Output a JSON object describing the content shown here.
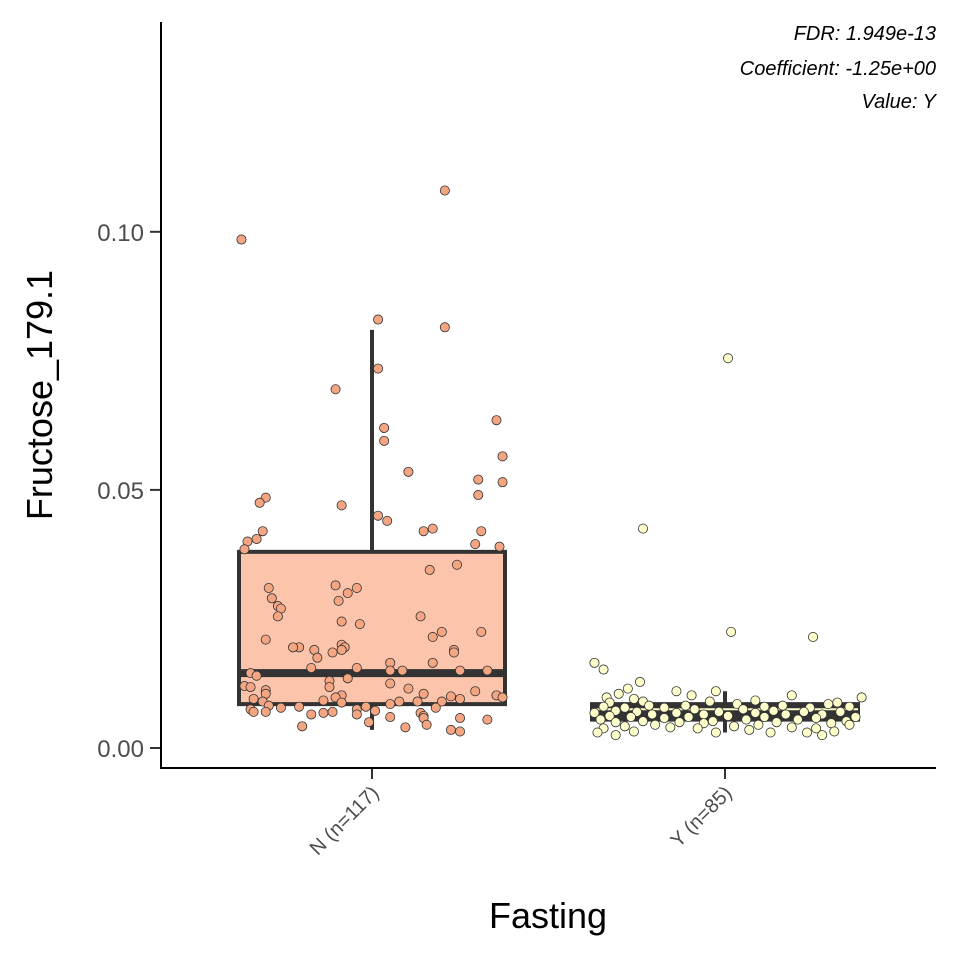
{
  "chart_data": {
    "type": "box",
    "title": "",
    "xlabel": "Fasting",
    "ylabel": "Fructose_179.1",
    "ylim": [
      -0.004,
      0.141
    ],
    "yticks": [
      {
        "value": 0.0,
        "label": "0.00"
      },
      {
        "value": 0.05,
        "label": "0.05"
      },
      {
        "value": 0.1,
        "label": "0.10"
      }
    ],
    "annotations": [
      "FDR: 1.949e-13",
      "Coefficient: -1.25e+00",
      "Value: Y"
    ],
    "grid": false,
    "legend": "none",
    "categories": [
      "N (n=117)",
      "Y (n=85)"
    ],
    "series": [
      {
        "category": "N (n=117)",
        "color": "#fcc5ab",
        "point_color": "#f4a582",
        "box": {
          "whisker_low": 0.0035,
          "q1": 0.0085,
          "median": 0.0145,
          "q3": 0.038,
          "whisker_high": 0.081
        },
        "points": [
          {
            "x": -0.43,
            "y": 0.0985
          },
          {
            "x": 0.24,
            "y": 0.108
          },
          {
            "x": 0.24,
            "y": 0.0815
          },
          {
            "x": 0.41,
            "y": 0.0635
          },
          {
            "x": 0.02,
            "y": 0.083
          },
          {
            "x": -0.12,
            "y": 0.0695
          },
          {
            "x": 0.02,
            "y": 0.0735
          },
          {
            "x": 0.43,
            "y": 0.0565
          },
          {
            "x": 0.04,
            "y": 0.062
          },
          {
            "x": 0.04,
            "y": 0.0595
          },
          {
            "x": 0.12,
            "y": 0.0535
          },
          {
            "x": 0.35,
            "y": 0.052
          },
          {
            "x": 0.43,
            "y": 0.0515
          },
          {
            "x": 0.35,
            "y": 0.049
          },
          {
            "x": -0.35,
            "y": 0.0485
          },
          {
            "x": -0.37,
            "y": 0.0475
          },
          {
            "x": -0.1,
            "y": 0.047
          },
          {
            "x": 0.02,
            "y": 0.045
          },
          {
            "x": 0.05,
            "y": 0.044
          },
          {
            "x": 0.2,
            "y": 0.0425
          },
          {
            "x": 0.17,
            "y": 0.042
          },
          {
            "x": 0.36,
            "y": 0.042
          },
          {
            "x": -0.36,
            "y": 0.042
          },
          {
            "x": -0.38,
            "y": 0.0405
          },
          {
            "x": -0.41,
            "y": 0.04
          },
          {
            "x": 0.34,
            "y": 0.0395
          },
          {
            "x": 0.42,
            "y": 0.039
          },
          {
            "x": -0.42,
            "y": 0.0385
          },
          {
            "x": 0.28,
            "y": 0.0355
          },
          {
            "x": 0.19,
            "y": 0.0345
          },
          {
            "x": -0.12,
            "y": 0.0315
          },
          {
            "x": -0.05,
            "y": 0.031
          },
          {
            "x": -0.34,
            "y": 0.031
          },
          {
            "x": -0.08,
            "y": 0.03
          },
          {
            "x": -0.33,
            "y": 0.029
          },
          {
            "x": -0.11,
            "y": 0.0285
          },
          {
            "x": -0.31,
            "y": 0.0275
          },
          {
            "x": -0.3,
            "y": 0.027
          },
          {
            "x": 0.16,
            "y": 0.0255
          },
          {
            "x": -0.31,
            "y": 0.0255
          },
          {
            "x": -0.1,
            "y": 0.0245
          },
          {
            "x": -0.04,
            "y": 0.024
          },
          {
            "x": 0.23,
            "y": 0.0225
          },
          {
            "x": 0.36,
            "y": 0.0225
          },
          {
            "x": 0.2,
            "y": 0.0215
          },
          {
            "x": -0.35,
            "y": 0.021
          },
          {
            "x": -0.1,
            "y": 0.02
          },
          {
            "x": -0.09,
            "y": 0.0195
          },
          {
            "x": -0.24,
            "y": 0.0195
          },
          {
            "x": 0.27,
            "y": 0.019
          },
          {
            "x": -0.19,
            "y": 0.019
          },
          {
            "x": -0.26,
            "y": 0.0195
          },
          {
            "x": -0.1,
            "y": 0.019
          },
          {
            "x": 0.27,
            "y": 0.0185
          },
          {
            "x": -0.13,
            "y": 0.0185
          },
          {
            "x": -0.18,
            "y": 0.0175
          },
          {
            "x": 0.06,
            "y": 0.0165
          },
          {
            "x": 0.2,
            "y": 0.0165
          },
          {
            "x": -0.05,
            "y": 0.0155
          },
          {
            "x": -0.2,
            "y": 0.0155
          },
          {
            "x": 0.06,
            "y": 0.015
          },
          {
            "x": 0.29,
            "y": 0.015
          },
          {
            "x": 0.1,
            "y": 0.015
          },
          {
            "x": 0.38,
            "y": 0.015
          },
          {
            "x": -0.4,
            "y": 0.0145
          },
          {
            "x": -0.38,
            "y": 0.014
          },
          {
            "x": -0.08,
            "y": 0.0135
          },
          {
            "x": -0.14,
            "y": 0.013
          },
          {
            "x": 0.06,
            "y": 0.0125
          },
          {
            "x": -0.42,
            "y": 0.012
          },
          {
            "x": -0.4,
            "y": 0.0118
          },
          {
            "x": -0.14,
            "y": 0.0118
          },
          {
            "x": 0.12,
            "y": 0.0115
          },
          {
            "x": -0.35,
            "y": 0.0112
          },
          {
            "x": 0.34,
            "y": 0.011
          },
          {
            "x": -0.35,
            "y": 0.0105
          },
          {
            "x": 0.17,
            "y": 0.0105
          },
          {
            "x": 0.41,
            "y": 0.0102
          },
          {
            "x": -0.1,
            "y": 0.0102
          },
          {
            "x": 0.26,
            "y": 0.01
          },
          {
            "x": -0.12,
            "y": 0.0098
          },
          {
            "x": 0.43,
            "y": 0.0098
          },
          {
            "x": -0.39,
            "y": 0.0095
          },
          {
            "x": 0.29,
            "y": 0.0095
          },
          {
            "x": -0.16,
            "y": 0.0092
          },
          {
            "x": 0.09,
            "y": 0.009
          },
          {
            "x": -0.36,
            "y": 0.009
          },
          {
            "x": 0.23,
            "y": 0.009
          },
          {
            "x": 0.15,
            "y": 0.009
          },
          {
            "x": -0.1,
            "y": 0.0088
          },
          {
            "x": 0.06,
            "y": 0.0085
          },
          {
            "x": -0.34,
            "y": 0.0082
          },
          {
            "x": -0.24,
            "y": 0.008
          },
          {
            "x": -0.02,
            "y": 0.008
          },
          {
            "x": -0.3,
            "y": 0.0078
          },
          {
            "x": 0.21,
            "y": 0.0078
          },
          {
            "x": -0.05,
            "y": 0.0075
          },
          {
            "x": -0.4,
            "y": 0.0075
          },
          {
            "x": 0.01,
            "y": 0.0072
          },
          {
            "x": -0.35,
            "y": 0.007
          },
          {
            "x": -0.13,
            "y": 0.007
          },
          {
            "x": -0.39,
            "y": 0.007
          },
          {
            "x": 0.16,
            "y": 0.0068
          },
          {
            "x": -0.16,
            "y": 0.0068
          },
          {
            "x": -0.05,
            "y": 0.0065
          },
          {
            "x": -0.2,
            "y": 0.0065
          },
          {
            "x": 0.17,
            "y": 0.0062
          },
          {
            "x": 0.06,
            "y": 0.006
          },
          {
            "x": 0.17,
            "y": 0.0058
          },
          {
            "x": 0.29,
            "y": 0.0058
          },
          {
            "x": 0.38,
            "y": 0.0055
          },
          {
            "x": -0.01,
            "y": 0.005
          },
          {
            "x": 0.18,
            "y": 0.0045
          },
          {
            "x": -0.23,
            "y": 0.0042
          },
          {
            "x": 0.11,
            "y": 0.004
          },
          {
            "x": 0.26,
            "y": 0.0035
          },
          {
            "x": 0.29,
            "y": 0.0032
          }
        ]
      },
      {
        "category": "Y (n=85)",
        "color": "#333333",
        "median_color": "#ffffcc",
        "point_color": "#ffffcc",
        "box": {
          "whisker_low": 0.003,
          "q1": 0.0055,
          "median": 0.0075,
          "q3": 0.0085,
          "whisker_high": 0.011
        },
        "points": [
          {
            "x": 0.01,
            "y": 0.0755
          },
          {
            "x": -0.27,
            "y": 0.0425
          },
          {
            "x": 0.02,
            "y": 0.0225
          },
          {
            "x": 0.29,
            "y": 0.0215
          },
          {
            "x": -0.43,
            "y": 0.0165
          },
          {
            "x": -0.4,
            "y": 0.0152
          },
          {
            "x": -0.28,
            "y": 0.0128
          },
          {
            "x": -0.32,
            "y": 0.0115
          },
          {
            "x": -0.16,
            "y": 0.011
          },
          {
            "x": -0.03,
            "y": 0.011
          },
          {
            "x": -0.35,
            "y": 0.0105
          },
          {
            "x": -0.11,
            "y": 0.0102
          },
          {
            "x": 0.22,
            "y": 0.0102
          },
          {
            "x": -0.39,
            "y": 0.0098
          },
          {
            "x": 0.45,
            "y": 0.0098
          },
          {
            "x": -0.3,
            "y": 0.0095
          },
          {
            "x": 0.1,
            "y": 0.0092
          },
          {
            "x": -0.05,
            "y": 0.009
          },
          {
            "x": -0.27,
            "y": 0.009
          },
          {
            "x": 0.37,
            "y": 0.0088
          },
          {
            "x": -0.38,
            "y": 0.0088
          },
          {
            "x": 0.04,
            "y": 0.0085
          },
          {
            "x": 0.34,
            "y": 0.0085
          },
          {
            "x": -0.25,
            "y": 0.0082
          },
          {
            "x": -0.13,
            "y": 0.0082
          },
          {
            "x": 0.19,
            "y": 0.0082
          },
          {
            "x": -0.4,
            "y": 0.008
          },
          {
            "x": 0.13,
            "y": 0.008
          },
          {
            "x": 0.41,
            "y": 0.008
          },
          {
            "x": -0.33,
            "y": 0.0078
          },
          {
            "x": -0.2,
            "y": 0.0078
          },
          {
            "x": 0.28,
            "y": 0.0078
          },
          {
            "x": -0.1,
            "y": 0.0075
          },
          {
            "x": 0.06,
            "y": 0.0075
          },
          {
            "x": -0.36,
            "y": 0.0072
          },
          {
            "x": 0.16,
            "y": 0.0072
          },
          {
            "x": -0.02,
            "y": 0.007
          },
          {
            "x": 0.26,
            "y": 0.007
          },
          {
            "x": -0.29,
            "y": 0.007
          },
          {
            "x": 0.38,
            "y": 0.007
          },
          {
            "x": -0.43,
            "y": 0.0068
          },
          {
            "x": -0.16,
            "y": 0.0068
          },
          {
            "x": 0.1,
            "y": 0.0068
          },
          {
            "x": 0.32,
            "y": 0.0065
          },
          {
            "x": -0.24,
            "y": 0.0065
          },
          {
            "x": -0.07,
            "y": 0.0065
          },
          {
            "x": 0.2,
            "y": 0.0065
          },
          {
            "x": -0.38,
            "y": 0.0062
          },
          {
            "x": 0.01,
            "y": 0.0062
          },
          {
            "x": 0.43,
            "y": 0.006
          },
          {
            "x": -0.31,
            "y": 0.006
          },
          {
            "x": -0.12,
            "y": 0.006
          },
          {
            "x": 0.13,
            "y": 0.006
          },
          {
            "x": 0.3,
            "y": 0.0058
          },
          {
            "x": -0.2,
            "y": 0.0058
          },
          {
            "x": -0.41,
            "y": 0.0055
          },
          {
            "x": 0.07,
            "y": 0.0055
          },
          {
            "x": 0.24,
            "y": 0.0055
          },
          {
            "x": -0.04,
            "y": 0.0052
          },
          {
            "x": -0.27,
            "y": 0.0052
          },
          {
            "x": 0.4,
            "y": 0.0052
          },
          {
            "x": -0.36,
            "y": 0.005
          },
          {
            "x": 0.17,
            "y": 0.005
          },
          {
            "x": -0.15,
            "y": 0.005
          },
          {
            "x": 0.35,
            "y": 0.0048
          },
          {
            "x": -0.07,
            "y": 0.0048
          },
          {
            "x": 0.11,
            "y": 0.0045
          },
          {
            "x": -0.23,
            "y": 0.0045
          },
          {
            "x": 0.41,
            "y": 0.0045
          },
          {
            "x": -0.33,
            "y": 0.0042
          },
          {
            "x": 0.03,
            "y": 0.0042
          },
          {
            "x": 0.22,
            "y": 0.004
          },
          {
            "x": -0.18,
            "y": 0.004
          },
          {
            "x": -0.4,
            "y": 0.0038
          },
          {
            "x": 0.3,
            "y": 0.0038
          },
          {
            "x": -0.09,
            "y": 0.0038
          },
          {
            "x": 0.08,
            "y": 0.0035
          },
          {
            "x": 0.36,
            "y": 0.0032
          },
          {
            "x": -0.3,
            "y": 0.0032
          },
          {
            "x": 0.15,
            "y": 0.003
          },
          {
            "x": -0.42,
            "y": 0.003
          },
          {
            "x": 0.27,
            "y": 0.003
          },
          {
            "x": -0.03,
            "y": 0.003
          },
          {
            "x": 0.32,
            "y": 0.0025
          },
          {
            "x": -0.36,
            "y": 0.0025
          }
        ]
      }
    ]
  }
}
